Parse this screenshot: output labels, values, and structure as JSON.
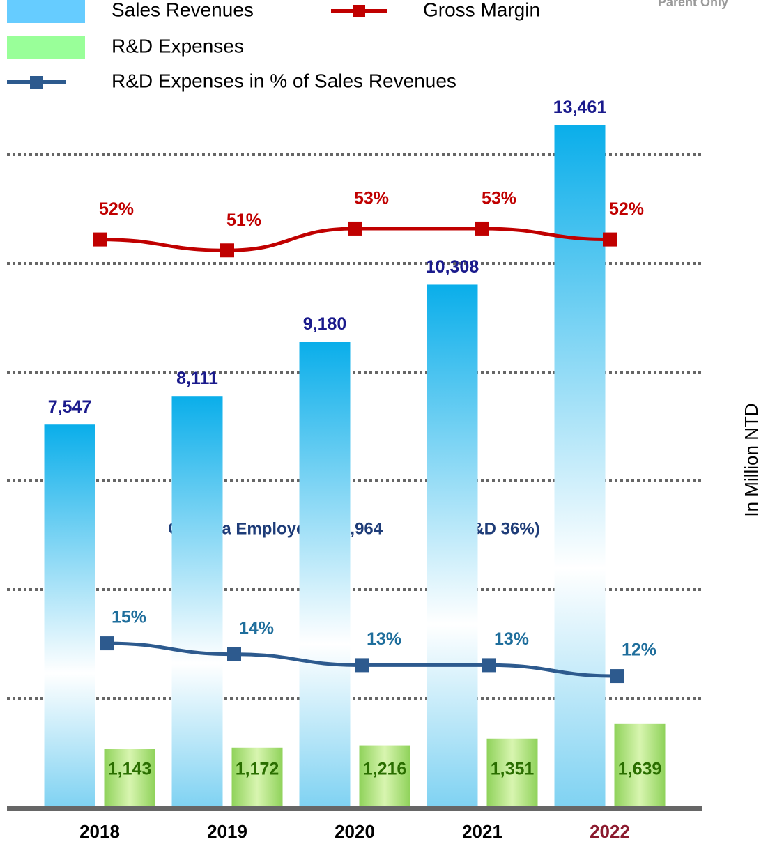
{
  "chart_data": {
    "type": "bar",
    "subtitle": "Parent Only",
    "y_axis_label": "In Million NTD",
    "annotation": [
      "Chroma Employees：1,964",
      "(R&D 36%)"
    ],
    "categories": [
      "2018",
      "2019",
      "2020",
      "2021",
      "2022"
    ],
    "category_label_colors": [
      "#000000",
      "#000000",
      "#000000",
      "#000000",
      "#8b1a2e"
    ],
    "ylim": [
      0,
      14000
    ],
    "y2lim": [
      0,
      65
    ],
    "series": [
      {
        "name": "Sales Revenues",
        "type": "bar",
        "color": "#66ccff",
        "label_color": "#1a1a8c",
        "values": [
          7547,
          8111,
          9180,
          10308,
          13461
        ],
        "value_labels": [
          "7,547",
          "8,111",
          "9,180",
          "10,308",
          "13,461"
        ]
      },
      {
        "name": "R&D Expenses",
        "type": "bar",
        "color": "#99ff99",
        "label_color": "#2a6e00",
        "values": [
          1143,
          1172,
          1216,
          1351,
          1639
        ],
        "value_labels": [
          "1,143",
          "1,172",
          "1,216",
          "1,351",
          "1,639"
        ]
      },
      {
        "name": "Gross Margin",
        "type": "line",
        "axis": "y2",
        "color": "#c00000",
        "label_color": "#c00000",
        "values": [
          52,
          51,
          53,
          53,
          52
        ],
        "value_labels": [
          "52%",
          "51%",
          "53%",
          "53%",
          "52%"
        ]
      },
      {
        "name": "R&D Expenses in % of Sales Revenues",
        "type": "line",
        "axis": "y2",
        "color": "#2d5a8e",
        "label_color": "#1f6e9c",
        "values": [
          15,
          14,
          13,
          13,
          12
        ],
        "value_labels": [
          "15%",
          "14%",
          "13%",
          "13%",
          "12%"
        ]
      }
    ]
  }
}
